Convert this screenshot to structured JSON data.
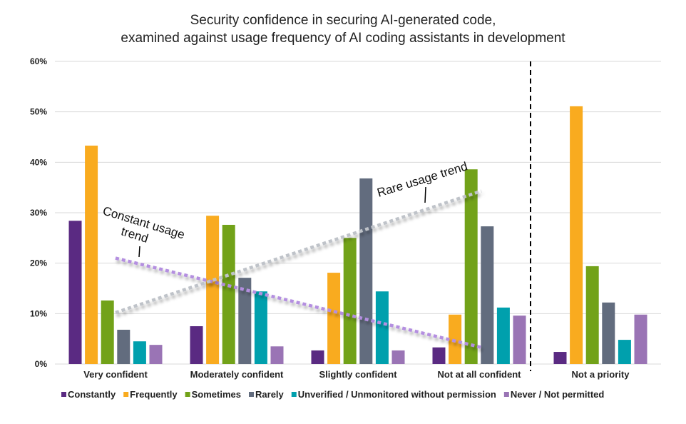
{
  "chart_data": {
    "type": "bar",
    "title": "Security confidence in securing AI-generated code, examined against usage frequency of AI coding assistants in development",
    "title_lines": [
      "Security confidence in securing AI-generated code,",
      "examined against usage frequency of AI coding assistants in development"
    ],
    "categories": [
      "Very confident",
      "Moderately confident",
      "Slightly confident",
      "Not at all confident",
      "Not a priority"
    ],
    "yticks": [
      "0%",
      "10%",
      "20%",
      "30%",
      "40%",
      "50%",
      "60%"
    ],
    "ylim": [
      0,
      60
    ],
    "grid": true,
    "legend": "bottom",
    "series": [
      {
        "name": "Constantly",
        "color": "#5a2a82",
        "values": [
          28.4,
          7.5,
          2.7,
          3.3,
          2.4
        ]
      },
      {
        "name": "Frequently",
        "color": "#f9ab1f",
        "values": [
          43.3,
          29.4,
          18.1,
          9.8,
          51.1
        ]
      },
      {
        "name": "Sometimes",
        "color": "#72a219",
        "values": [
          12.6,
          27.6,
          25.0,
          38.6,
          19.4
        ]
      },
      {
        "name": "Rarely",
        "color": "#626c7e",
        "values": [
          6.8,
          17.1,
          36.8,
          27.3,
          12.2
        ]
      },
      {
        "name": "Unverified / Unmonitored without permission",
        "color": "#00a0ad",
        "values": [
          4.5,
          14.4,
          14.4,
          11.2,
          4.8
        ]
      },
      {
        "name": "Never / Not permitted",
        "color": "#9a74b5",
        "values": [
          3.8,
          3.5,
          2.7,
          9.6,
          9.8
        ]
      }
    ],
    "annotations": [
      {
        "text": "Constant usage trend",
        "lines": [
          "Constant usage",
          "trend"
        ],
        "color": "#b48fe0",
        "from": [
          "Very confident",
          21
        ],
        "to": [
          "Not at all confident",
          3.3
        ]
      },
      {
        "text": "Rare usage trend",
        "color": "#bfc3c9",
        "from": [
          "Very confident",
          10.2
        ],
        "to": [
          "Not at all confident",
          34.3
        ]
      }
    ],
    "divider_before": "Not a priority"
  }
}
